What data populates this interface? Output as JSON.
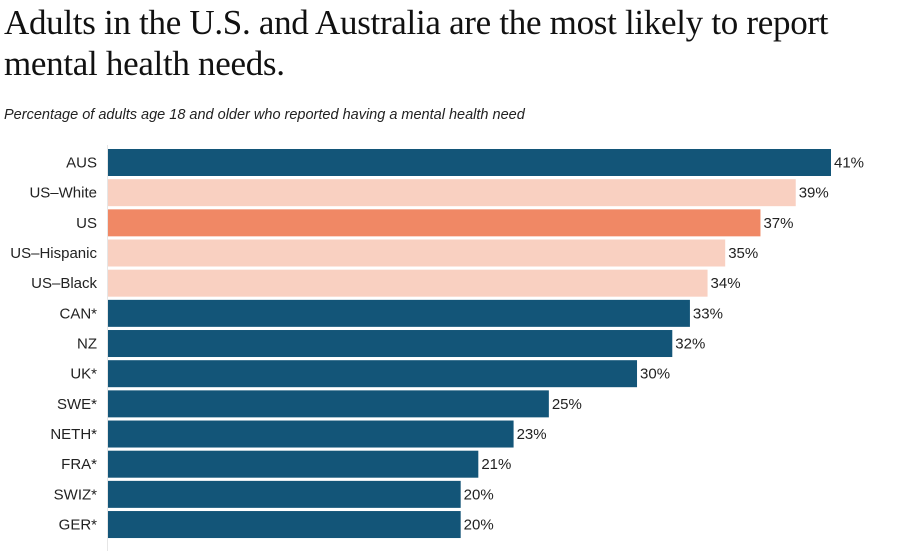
{
  "chart_data": {
    "type": "bar",
    "orientation": "horizontal",
    "title": "Adults in the U.S. and Australia are the most likely to report mental health needs.",
    "subtitle": "Percentage of adults age 18 and older who reported having a mental health need",
    "categories": [
      "AUS",
      "US–White",
      "US",
      "US–Hispanic",
      "US–Black",
      "CAN*",
      "NZ",
      "UK*",
      "SWE*",
      "NETH*",
      "FRA*",
      "SWIZ*",
      "GER*"
    ],
    "values": [
      41,
      39,
      37,
      35,
      34,
      33,
      32,
      30,
      25,
      23,
      21,
      20,
      20
    ],
    "value_suffix": "%",
    "groups": [
      "other",
      "us-sub",
      "us",
      "us-sub",
      "us-sub",
      "other",
      "other",
      "other",
      "other",
      "other",
      "other",
      "other",
      "other"
    ],
    "colors": {
      "other": "#135578",
      "us": "#f08865",
      "us-sub": "#f9d0c1"
    },
    "xlim": [
      0,
      41
    ],
    "grid": false
  }
}
